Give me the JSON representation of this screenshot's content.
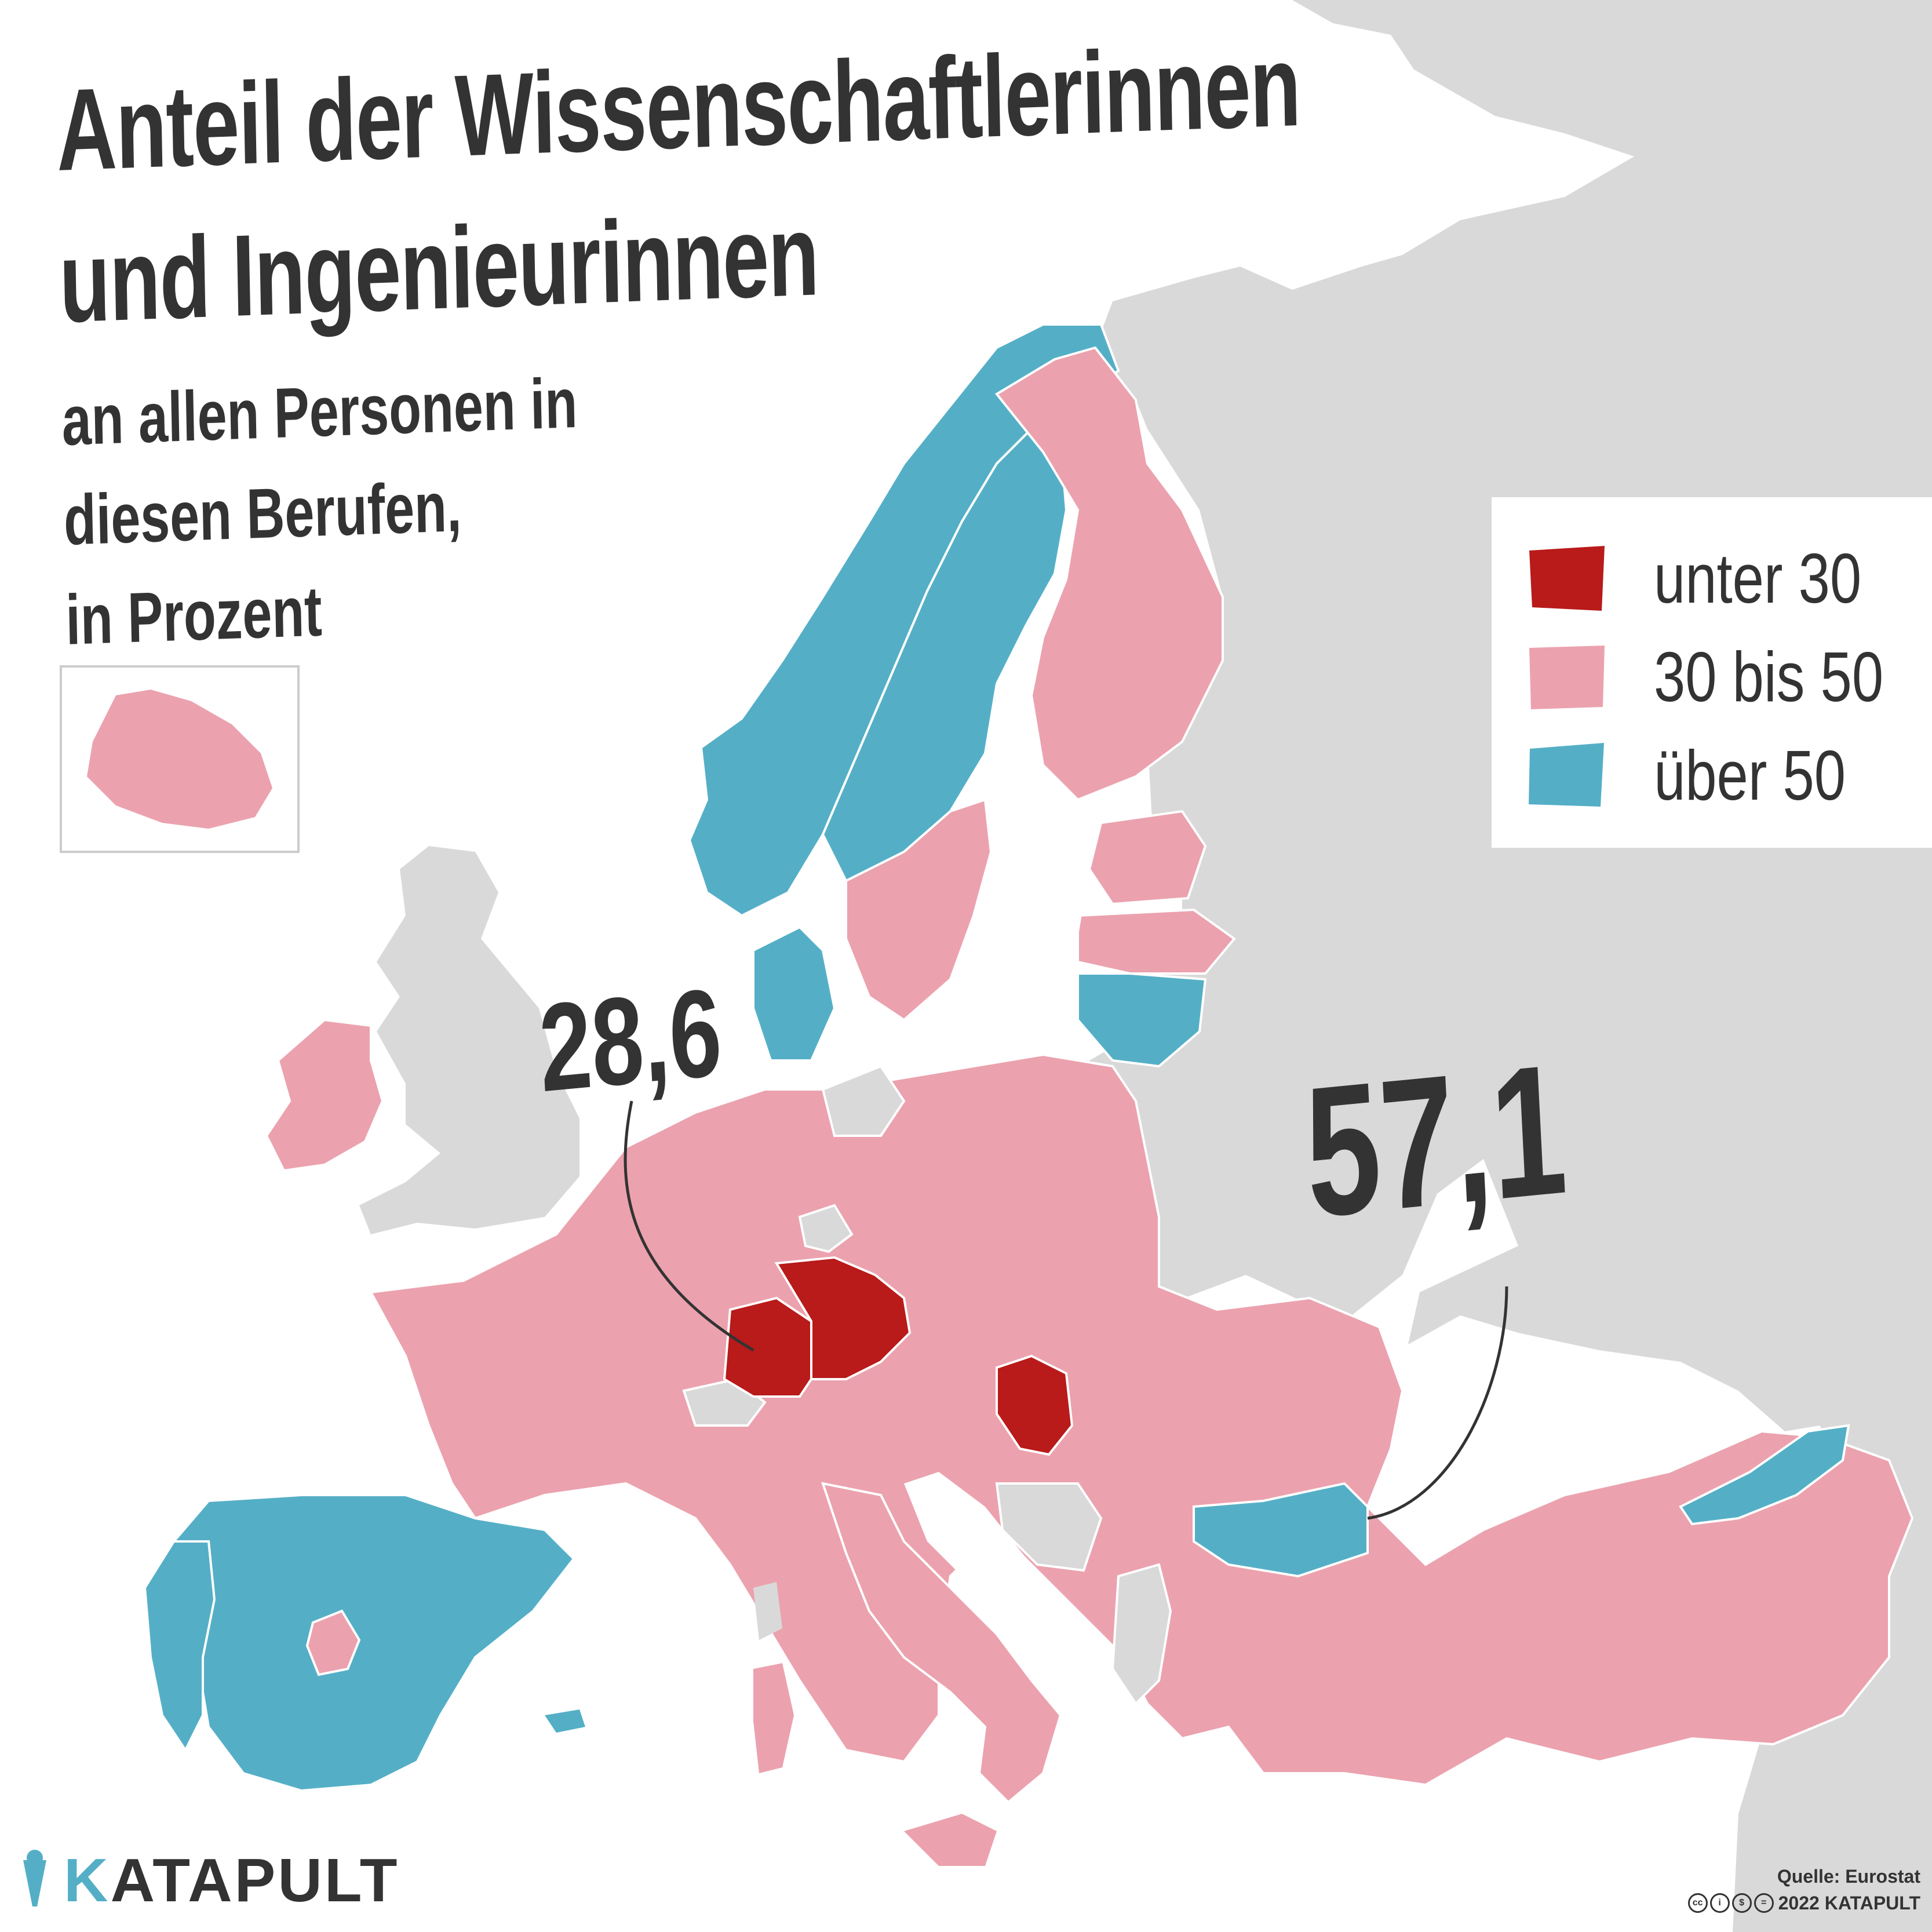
{
  "title": {
    "line1": "Anteil der Wissenschaftlerinnen",
    "line2": "und Ingenieurinnen"
  },
  "subtitle": {
    "line1": "an allen Personen in",
    "line2": "diesen Berufen,",
    "line3": "in Prozent"
  },
  "legend": [
    {
      "label": "unter 30",
      "color": "#b91a1a"
    },
    {
      "label": "30 bis 50",
      "color": "#eba2ae"
    },
    {
      "label": "über 50",
      "color": "#54afc6"
    }
  ],
  "colors": {
    "background": "#ffffff",
    "non_data_land": "#d9d9d9",
    "borders": "#ffffff",
    "text": "#333333"
  },
  "callouts": {
    "min_value": "28,6",
    "max_value": "57,1"
  },
  "brand": {
    "initial": "K",
    "rest": "ATAPULT"
  },
  "source": {
    "line": "Quelle: Eurostat",
    "copyright": "2022 KATAPULT",
    "license_icons": [
      "cc-icon",
      "by-icon",
      "nc-icon",
      "nd-icon"
    ]
  }
}
